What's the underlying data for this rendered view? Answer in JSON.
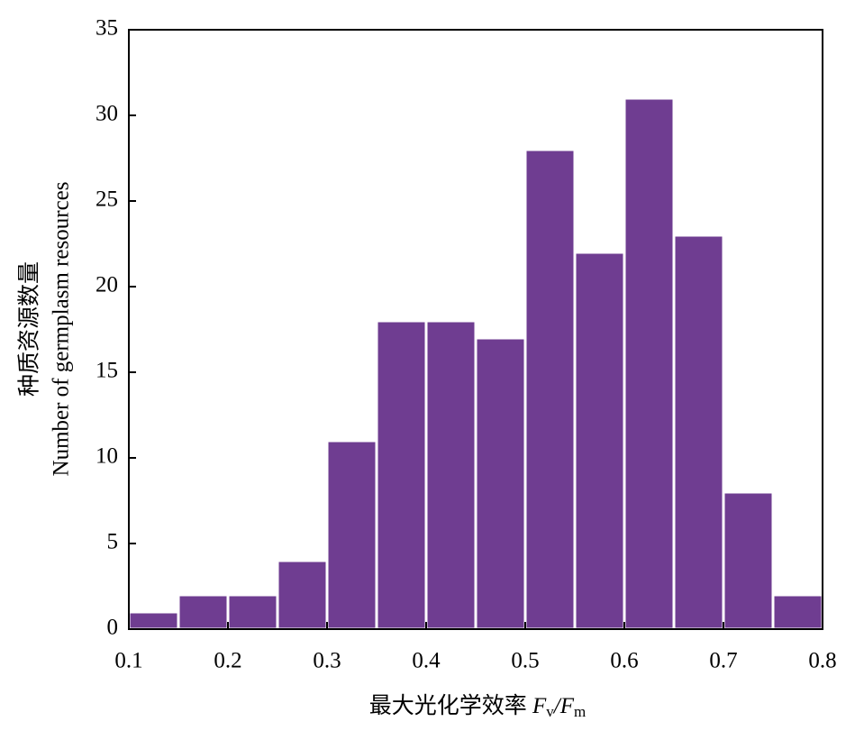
{
  "chart_data": {
    "type": "histogram",
    "ylabel": [
      "种质资源数量",
      "Number of germplasm resources"
    ],
    "xlabel": [
      "最大光化学效率 ",
      "F",
      "v",
      "/F",
      "m"
    ],
    "bins": [
      0.1,
      0.15,
      0.2,
      0.25,
      0.3,
      0.35,
      0.4,
      0.45,
      0.5,
      0.55,
      0.6,
      0.65,
      0.7,
      0.75,
      0.8
    ],
    "values": [
      1,
      2,
      2,
      4,
      11,
      18,
      18,
      17,
      28,
      22,
      31,
      23,
      8,
      2
    ],
    "color": "#6f3d91",
    "xlim": [
      0.1,
      0.8
    ],
    "xticks": [
      0.1,
      0.2,
      0.3,
      0.4,
      0.5,
      0.6,
      0.7,
      0.8
    ],
    "ylim": [
      0,
      35
    ],
    "yticks": [
      0,
      5,
      10,
      15,
      20,
      25,
      30,
      35
    ]
  }
}
